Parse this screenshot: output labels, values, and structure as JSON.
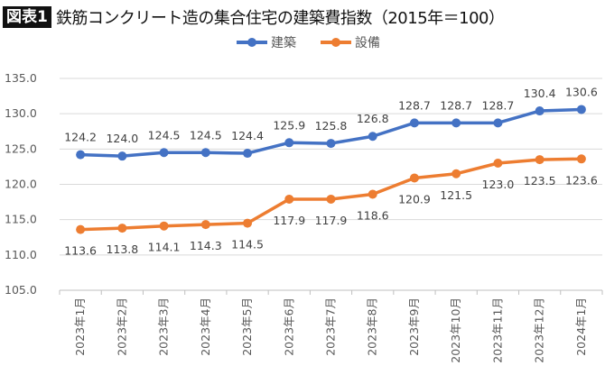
{
  "header": {
    "badge": "図表1",
    "title": "鉄筋コンクリート造の集合住宅の建築費指数（2015年＝100）"
  },
  "chart_data": {
    "type": "line",
    "title": "鉄筋コンクリート造の集合住宅の建築費指数（2015年＝100）",
    "categories": [
      "2023年1月",
      "2023年2月",
      "2023年3月",
      "2023年4月",
      "2023年5月",
      "2023年6月",
      "2023年7月",
      "2023年8月",
      "2023年9月",
      "2023年10月",
      "2023年11月",
      "2023年12月",
      "2024年1月"
    ],
    "series": [
      {
        "name": "建築",
        "color": "#4472C4",
        "values": [
          124.2,
          124.0,
          124.5,
          124.5,
          124.4,
          125.9,
          125.8,
          126.8,
          128.7,
          128.7,
          128.7,
          130.4,
          130.6
        ]
      },
      {
        "name": "設備",
        "color": "#ED7D31",
        "values": [
          113.6,
          113.8,
          114.1,
          114.3,
          114.5,
          117.9,
          117.9,
          118.6,
          120.9,
          121.5,
          123.0,
          123.5,
          123.6
        ]
      }
    ],
    "ylim": [
      105,
      135
    ],
    "yticks": [
      "105.0",
      "110.0",
      "115.0",
      "120.0",
      "125.0",
      "130.0",
      "135.0"
    ],
    "grid": true,
    "legend": "top-center"
  }
}
